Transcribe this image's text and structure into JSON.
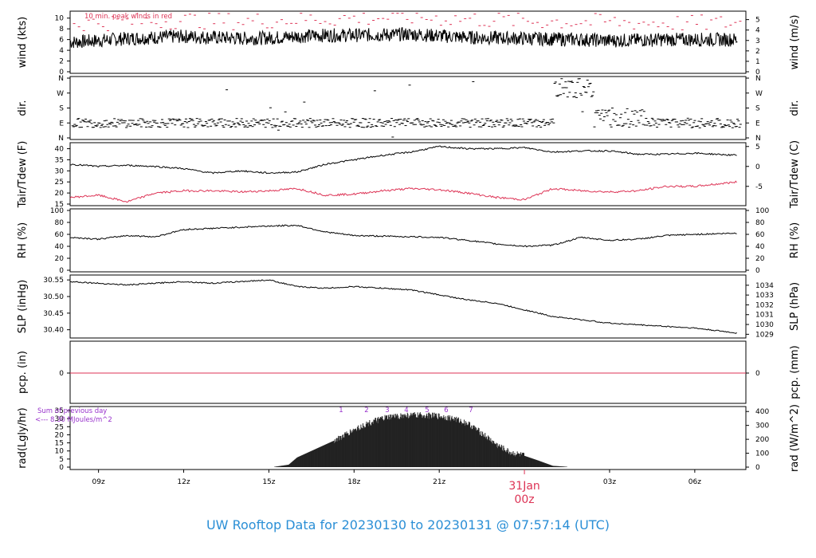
{
  "title": "UW Rooftop Data for 20230130  to  20230131 @ 07:57:14  (UTC)",
  "colors": {
    "red": "#dd3355",
    "purple": "#9933cc",
    "title": "#2b8fd6"
  },
  "x_axis": {
    "ticks": [
      "09z",
      "12z",
      "15z",
      "18z",
      "21z",
      "03z",
      "06z"
    ],
    "date_label": "31Jan",
    "date_sublabel": "00z"
  },
  "chart_data": [
    {
      "type": "line",
      "id": "wind",
      "ylabel_left": "wind (kts)",
      "ylabel_right": "wind (m/s)",
      "ylim": [
        0,
        11
      ],
      "yticks_left": [
        "0",
        "2",
        "4",
        "6",
        "8",
        "10"
      ],
      "yticks_right": [
        "0",
        "1",
        "2",
        "3",
        "4",
        "5"
      ],
      "annotation": "10 min. peak winds in red",
      "series": [
        {
          "x": [
            8,
            9,
            10,
            11,
            12,
            13,
            14,
            15,
            16,
            17,
            18,
            19,
            20,
            21,
            22,
            23,
            24,
            25,
            26,
            27,
            28,
            29,
            31.5
          ],
          "values": [
            5.5,
            5.8,
            6.2,
            6.4,
            6.6,
            6.4,
            6.2,
            6.3,
            6.6,
            6.8,
            6.8,
            6.9,
            7.0,
            6.7,
            6.4,
            6.3,
            6.2,
            6.1,
            6.0,
            5.8,
            5.9,
            6.0,
            6.0
          ]
        },
        {
          "x": [
            8,
            10,
            12,
            14,
            16,
            18,
            20,
            22,
            24,
            26,
            28,
            30,
            31.5
          ],
          "values": [
            9.0,
            9.3,
            9.6,
            9.4,
            9.8,
            10.0,
            10.2,
            9.8,
            9.5,
            9.3,
            9.2,
            9.0,
            9.1
          ]
        }
      ]
    },
    {
      "type": "scatter",
      "id": "dir",
      "ylabel_left": "dir.",
      "ylabel_right": "dir.",
      "yticks": [
        "N",
        "E",
        "S",
        "W",
        "N"
      ],
      "series": [
        {
          "x": [
            8,
            12,
            16,
            20,
            24,
            25.5,
            26.5,
            27,
            28,
            31.5
          ],
          "values": [
            90,
            95,
            80,
            100,
            90,
            300,
            150,
            120,
            100,
            95
          ]
        }
      ]
    },
    {
      "type": "line",
      "id": "temp",
      "ylabel_left": "Tair/Tdew (F)",
      "ylabel_right": "Tair/Tdew (C)",
      "ylim": [
        15,
        42
      ],
      "yticks_left": [
        "15",
        "20",
        "25",
        "30",
        "35",
        "40"
      ],
      "yticks_right": [
        "-5",
        "0",
        "5"
      ],
      "series": [
        {
          "x": [
            8,
            9,
            10,
            11,
            12,
            13,
            14,
            15,
            16,
            17,
            18,
            19,
            20,
            21,
            22,
            23,
            24,
            25,
            26,
            27,
            28,
            29,
            30,
            31.5
          ],
          "values": [
            33,
            32,
            32.5,
            32,
            31,
            29,
            30,
            29,
            29.5,
            33,
            35,
            37,
            38.5,
            41,
            40,
            40,
            40.5,
            38.5,
            39,
            39,
            37.5,
            37.5,
            38,
            37
          ]
        },
        {
          "x": [
            8,
            9,
            10,
            11,
            12,
            13,
            14,
            15,
            16,
            17,
            18,
            19,
            20,
            21,
            22,
            23,
            24,
            25,
            26,
            27,
            28,
            29,
            30,
            31.5
          ],
          "values": [
            18,
            19,
            16,
            20,
            21,
            21,
            20.5,
            21,
            22,
            19,
            19.5,
            21,
            22,
            21.5,
            20,
            18,
            17,
            22,
            21,
            20.5,
            21,
            23,
            23,
            25
          ]
        }
      ]
    },
    {
      "type": "line",
      "id": "rh",
      "ylabel_left": "RH (%)",
      "ylabel_right": "RH (%)",
      "ylim": [
        0,
        100
      ],
      "yticks": [
        "0",
        "20",
        "40",
        "60",
        "80",
        "100"
      ],
      "series": [
        {
          "x": [
            8,
            9,
            10,
            11,
            12,
            13,
            14,
            15,
            16,
            17,
            18,
            19,
            20,
            21,
            22,
            23,
            24,
            25,
            26,
            27,
            28,
            29,
            30,
            31.5
          ],
          "values": [
            55,
            52,
            58,
            56,
            68,
            70,
            72,
            74,
            75,
            64,
            58,
            57,
            56,
            55,
            50,
            44,
            40,
            42,
            55,
            50,
            52,
            58,
            60,
            62
          ]
        }
      ]
    },
    {
      "type": "line",
      "id": "slp",
      "ylabel_left": "SLP (inHg)",
      "ylabel_right": "SLP (hPa)",
      "ylim": [
        30.38,
        30.56
      ],
      "yticks_left": [
        "30.40",
        "30.45",
        "30.50",
        "30.55"
      ],
      "yticks_right": [
        "1029",
        "1030",
        "1031",
        "1032",
        "1033",
        "1034"
      ],
      "series": [
        {
          "x": [
            8,
            9,
            10,
            11,
            12,
            13,
            14,
            15,
            16,
            17,
            18,
            19,
            20,
            21,
            22,
            23,
            24,
            25,
            26,
            27,
            28,
            29,
            30,
            31.5
          ],
          "values": [
            30.545,
            30.54,
            30.535,
            30.54,
            30.545,
            30.54,
            30.545,
            30.55,
            30.53,
            30.525,
            30.53,
            30.525,
            30.52,
            30.505,
            30.49,
            30.48,
            30.46,
            30.44,
            30.43,
            30.42,
            30.415,
            30.41,
            30.405,
            30.39
          ]
        }
      ]
    },
    {
      "type": "line",
      "id": "pcp",
      "ylabel_left": "pcp. (in)",
      "ylabel_right": "pcp. (mm)",
      "yticks_left": [
        "0"
      ],
      "yticks_right": [
        "0"
      ],
      "series": [
        {
          "x": [
            8,
            31.5
          ],
          "values": [
            0,
            0
          ]
        }
      ]
    },
    {
      "type": "area",
      "id": "rad",
      "ylabel_left": "rad(Lgly/hr)",
      "ylabel_right": "rad (W/m^2)",
      "ylim": [
        0,
        35
      ],
      "yticks_left": [
        "0",
        "5",
        "10",
        "15",
        "20",
        "25",
        "30",
        "35"
      ],
      "yticks_right": [
        "0",
        "100",
        "200",
        "300",
        "400"
      ],
      "note_line1": "Sum of previous day",
      "note_line2": "<--- 8.30 MJoules/m^2",
      "hour_markers": [
        "1",
        "2",
        "3",
        "4",
        "5",
        "6",
        "7"
      ],
      "series": [
        {
          "x": [
            15.2,
            15.7,
            16.0,
            16.5,
            17.0,
            17.5,
            18.0,
            18.5,
            19.0,
            19.5,
            20.0,
            20.5,
            21.0,
            21.5,
            22.0,
            22.5,
            23.0,
            23.5,
            24.0,
            24.5,
            25.0,
            25.5
          ],
          "values": [
            0.2,
            1.5,
            6,
            10,
            14,
            18,
            23,
            27,
            30,
            31.5,
            32,
            32,
            31.5,
            30,
            27,
            21,
            14,
            9,
            7,
            4,
            0.8,
            0.2
          ]
        }
      ]
    }
  ]
}
